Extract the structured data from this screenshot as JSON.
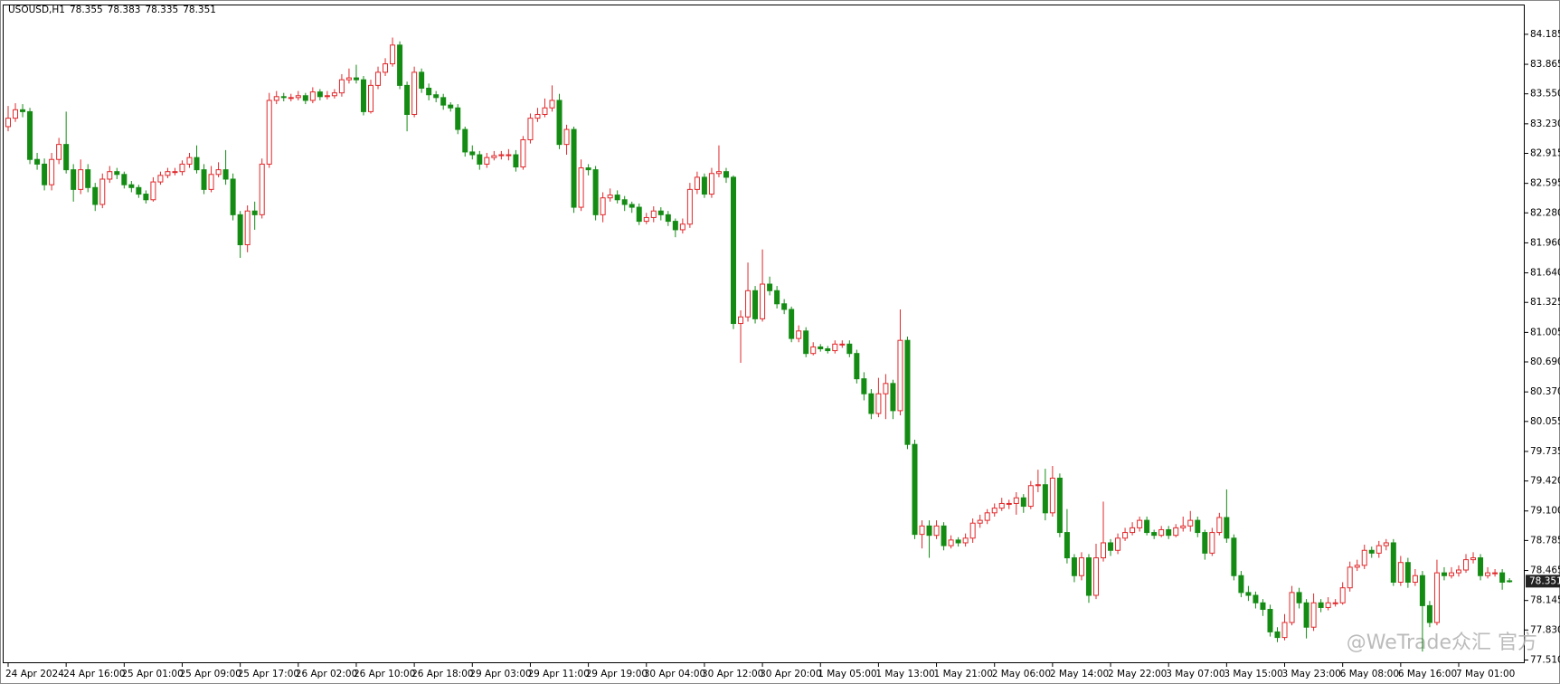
{
  "chart_data": {
    "type": "candlestick",
    "symbol": "USOUSD,H1",
    "watermark": "@WeTrade众汇 官方",
    "up_color": "#e0282b",
    "down_color": "#148c14",
    "grid": false,
    "ylim": [
      77.476,
      84.493
    ],
    "yticks": [
      84.185,
      83.865,
      {
        "value": 83.55,
        "label": "83.550"
      },
      {
        "value": 83.23,
        "label": "83.230"
      },
      82.915,
      82.595,
      {
        "value": 82.28,
        "label": "82.280"
      },
      {
        "value": 81.96,
        "label": "81.960"
      },
      {
        "value": 81.64,
        "label": "81.640"
      },
      81.325,
      81.005,
      {
        "value": 80.69,
        "label": "80.690"
      },
      {
        "value": 80.37,
        "label": "80.370"
      },
      80.055,
      79.735,
      {
        "value": 79.42,
        "label": "79.420"
      },
      {
        "value": 79.1,
        "label": "79.100"
      },
      78.785,
      78.465,
      78.145,
      {
        "value": 77.83,
        "label": "77.830"
      },
      {
        "value": 77.51,
        "label": "77.510"
      }
    ],
    "categories": [
      "24 Apr 2024",
      null,
      null,
      null,
      null,
      null,
      null,
      null,
      "24 Apr 16:00",
      null,
      null,
      null,
      null,
      null,
      null,
      null,
      "25 Apr 01:00",
      null,
      null,
      null,
      null,
      null,
      null,
      null,
      "25 Apr 09:00",
      null,
      null,
      null,
      null,
      null,
      null,
      null,
      "25 Apr 17:00",
      null,
      null,
      null,
      null,
      null,
      null,
      null,
      "26 Apr 02:00",
      null,
      null,
      null,
      null,
      null,
      null,
      null,
      "26 Apr 10:00",
      null,
      null,
      null,
      null,
      null,
      null,
      null,
      "26 Apr 18:00",
      null,
      null,
      null,
      null,
      null,
      null,
      null,
      "29 Apr 03:00",
      null,
      null,
      null,
      null,
      null,
      null,
      null,
      "29 Apr 11:00",
      null,
      null,
      null,
      null,
      null,
      null,
      null,
      "29 Apr 19:00",
      null,
      null,
      null,
      null,
      null,
      null,
      null,
      "30 Apr 04:00",
      null,
      null,
      null,
      null,
      null,
      null,
      null,
      "30 Apr 12:00",
      null,
      null,
      null,
      null,
      null,
      null,
      null,
      "30 Apr 20:00",
      null,
      null,
      null,
      null,
      null,
      null,
      null,
      "1 May 05:00",
      null,
      null,
      null,
      null,
      null,
      null,
      null,
      "1 May 13:00",
      null,
      null,
      null,
      null,
      null,
      null,
      null,
      "1 May 21:00",
      null,
      null,
      null,
      null,
      null,
      null,
      null,
      "2 May 06:00",
      null,
      null,
      null,
      null,
      null,
      null,
      null,
      "2 May 14:00",
      null,
      null,
      null,
      null,
      null,
      null,
      null,
      "2 May 22:00",
      null,
      null,
      null,
      null,
      null,
      null,
      null,
      "3 May 07:00",
      null,
      null,
      null,
      null,
      null,
      null,
      null,
      "3 May 15:00",
      null,
      null,
      null,
      null,
      null,
      null,
      null,
      "3 May 23:00",
      null,
      null,
      null,
      null,
      null,
      null,
      null,
      "6 May 08:00",
      null,
      null,
      null,
      null,
      null,
      null,
      null,
      "6 May 16:00",
      null,
      null,
      null,
      null,
      null,
      null,
      null,
      "7 May 01:00",
      null,
      null,
      null,
      null,
      null,
      null,
      null
    ],
    "open": [
      83.2,
      83.29,
      83.38,
      83.36,
      82.85,
      82.8,
      82.58,
      82.85,
      83.01,
      82.74,
      82.53,
      82.74,
      82.55,
      82.37,
      82.64,
      82.72,
      82.69,
      82.58,
      82.55,
      82.48,
      82.42,
      82.61,
      82.68,
      82.72,
      82.72,
      82.8,
      82.87,
      82.74,
      82.53,
      82.69,
      82.74,
      82.64,
      82.26,
      81.94,
      82.3,
      82.26,
      82.8,
      83.48,
      83.52,
      83.51,
      83.51,
      83.53,
      83.48,
      83.57,
      83.52,
      83.53,
      83.56,
      83.7,
      83.72,
      83.7,
      83.36,
      83.64,
      83.78,
      83.87,
      84.07,
      83.64,
      83.33,
      83.78,
      83.61,
      83.54,
      83.51,
      83.43,
      83.4,
      83.17,
      82.93,
      82.9,
      82.8,
      82.87,
      82.89,
      82.9,
      82.9,
      82.77,
      83.06,
      83.29,
      83.33,
      83.4,
      83.48,
      83.01,
      83.17,
      82.34,
      82.76,
      82.74,
      82.26,
      82.44,
      82.47,
      82.42,
      82.37,
      82.34,
      82.19,
      82.23,
      82.3,
      82.26,
      82.19,
      82.1,
      82.16,
      82.53,
      82.66,
      82.48,
      82.7,
      82.72,
      82.66,
      81.1,
      81.17,
      81.45,
      81.15,
      81.52,
      81.45,
      81.31,
      81.25,
      80.94,
      81.02,
      80.78,
      80.85,
      80.83,
      80.81,
      80.88,
      80.88,
      80.78,
      80.51,
      80.35,
      80.14,
      80.35,
      80.46,
      80.17,
      80.92,
      79.81,
      78.85,
      78.94,
      78.84,
      78.94,
      78.73,
      78.79,
      78.76,
      78.81,
      78.97,
      79.0,
      79.08,
      79.13,
      79.18,
      79.18,
      79.24,
      79.15,
      79.37,
      79.38,
      79.08,
      79.45,
      78.87,
      78.6,
      78.41,
      78.6,
      78.2,
      78.6,
      78.76,
      78.68,
      78.81,
      78.87,
      78.92,
      79.0,
      78.87,
      78.84,
      78.9,
      78.84,
      78.92,
      78.94,
      79.0,
      78.87,
      78.65,
      78.87,
      79.03,
      78.81,
      78.41,
      78.23,
      78.2,
      78.12,
      78.05,
      77.81,
      77.75,
      77.91,
      78.23,
      78.12,
      77.86,
      78.12,
      78.07,
      78.12,
      78.12,
      78.28,
      78.5,
      78.52,
      78.68,
      78.65,
      78.73,
      78.76,
      78.34,
      78.55,
      78.34,
      78.41,
      78.09,
      77.91,
      78.44,
      78.41,
      78.44,
      78.47,
      78.58,
      78.6,
      78.41,
      78.44,
      78.44,
      78.355
    ],
    "high": [
      83.42,
      83.45,
      83.44,
      83.4,
      82.92,
      82.86,
      82.92,
      83.08,
      83.36,
      82.8,
      82.85,
      82.8,
      82.6,
      82.7,
      82.78,
      82.76,
      82.72,
      82.62,
      82.58,
      82.52,
      82.66,
      82.72,
      82.76,
      82.76,
      82.84,
      82.92,
      83.0,
      82.8,
      82.78,
      82.82,
      82.95,
      82.7,
      82.3,
      82.36,
      82.4,
      82.86,
      83.56,
      83.58,
      83.56,
      83.55,
      83.58,
      83.56,
      83.62,
      83.6,
      83.58,
      83.6,
      83.76,
      83.82,
      83.86,
      83.74,
      83.7,
      83.84,
      83.93,
      84.15,
      84.11,
      83.68,
      83.84,
      83.82,
      83.66,
      83.58,
      83.55,
      83.46,
      83.44,
      83.2,
      83.0,
      82.94,
      82.92,
      82.94,
      82.94,
      82.96,
      82.95,
      83.1,
      83.34,
      83.4,
      83.5,
      83.64,
      83.55,
      83.22,
      83.2,
      82.85,
      82.8,
      82.78,
      82.5,
      82.54,
      82.52,
      82.46,
      82.4,
      82.38,
      82.28,
      82.35,
      82.34,
      82.3,
      82.22,
      82.22,
      82.6,
      82.72,
      82.7,
      82.76,
      83.0,
      82.76,
      82.68,
      81.24,
      81.75,
      81.5,
      81.89,
      81.6,
      81.5,
      81.36,
      81.28,
      81.08,
      81.06,
      80.9,
      80.88,
      80.86,
      80.92,
      80.92,
      80.92,
      80.82,
      80.58,
      80.4,
      80.52,
      80.56,
      80.5,
      81.25,
      80.96,
      79.86,
      79.0,
      79.0,
      79.0,
      78.98,
      78.84,
      78.82,
      78.86,
      79.02,
      79.06,
      79.12,
      79.18,
      79.24,
      79.22,
      79.3,
      79.28,
      79.42,
      79.54,
      79.55,
      79.58,
      79.5,
      79.12,
      78.64,
      78.66,
      78.64,
      78.75,
      79.2,
      78.8,
      78.86,
      78.92,
      78.98,
      79.04,
      79.04,
      78.9,
      78.94,
      78.94,
      78.96,
      79.04,
      79.1,
      79.04,
      78.9,
      78.92,
      79.08,
      79.33,
      78.85,
      78.46,
      78.3,
      78.24,
      78.16,
      78.1,
      77.86,
      78.0,
      78.3,
      78.28,
      78.16,
      78.22,
      78.16,
      78.18,
      78.16,
      78.34,
      78.56,
      78.58,
      78.74,
      78.72,
      78.78,
      78.8,
      78.8,
      78.62,
      78.6,
      78.48,
      78.46,
      78.14,
      78.58,
      78.5,
      78.5,
      78.52,
      78.64,
      78.66,
      78.64,
      78.5,
      78.48,
      78.48,
      78.383
    ],
    "low": [
      83.15,
      83.25,
      83.3,
      82.8,
      82.74,
      82.52,
      82.52,
      82.8,
      82.7,
      82.4,
      82.48,
      82.5,
      82.3,
      82.33,
      82.6,
      82.64,
      82.54,
      82.5,
      82.44,
      82.38,
      82.4,
      82.58,
      82.65,
      82.68,
      82.68,
      82.76,
      82.7,
      82.48,
      82.5,
      82.66,
      82.58,
      82.2,
      81.8,
      81.86,
      82.1,
      82.22,
      82.76,
      83.44,
      83.47,
      83.47,
      83.48,
      83.44,
      83.45,
      83.48,
      83.49,
      83.5,
      83.52,
      83.66,
      83.66,
      83.32,
      83.34,
      83.6,
      83.74,
      83.84,
      83.6,
      83.15,
      83.3,
      83.56,
      83.48,
      83.46,
      83.38,
      83.36,
      83.12,
      82.88,
      82.85,
      82.74,
      82.76,
      82.84,
      82.85,
      82.84,
      82.72,
      82.74,
      83.02,
      83.25,
      83.3,
      83.36,
      82.96,
      82.9,
      82.28,
      82.3,
      82.68,
      82.2,
      82.18,
      82.4,
      82.38,
      82.3,
      82.28,
      82.15,
      82.16,
      82.18,
      82.2,
      82.14,
      82.02,
      82.06,
      82.12,
      82.48,
      82.44,
      82.44,
      82.66,
      82.6,
      81.04,
      80.68,
      81.12,
      81.1,
      81.12,
      81.4,
      81.26,
      81.2,
      80.9,
      80.9,
      80.74,
      80.76,
      80.8,
      80.78,
      80.78,
      80.84,
      80.74,
      80.46,
      80.28,
      80.08,
      80.1,
      80.08,
      80.08,
      80.12,
      79.76,
      78.8,
      78.7,
      78.6,
      78.8,
      78.68,
      78.7,
      78.72,
      78.72,
      78.76,
      78.92,
      78.96,
      79.04,
      79.1,
      79.12,
      79.06,
      79.08,
      79.12,
      79.3,
      79.0,
      79.04,
      78.82,
      78.54,
      78.34,
      78.36,
      78.12,
      78.16,
      78.56,
      78.62,
      78.64,
      78.78,
      78.84,
      78.88,
      78.84,
      78.8,
      78.82,
      78.8,
      78.82,
      78.88,
      78.88,
      78.82,
      78.58,
      78.62,
      78.84,
      78.76,
      78.36,
      78.18,
      78.14,
      78.06,
      77.98,
      77.76,
      77.7,
      77.72,
      77.88,
      78.06,
      77.74,
      77.82,
      78.02,
      78.04,
      78.08,
      78.1,
      78.24,
      78.46,
      78.48,
      78.6,
      78.6,
      78.68,
      78.3,
      78.3,
      78.28,
      78.3,
      77.6,
      77.86,
      77.88,
      78.36,
      78.38,
      78.4,
      78.44,
      78.54,
      78.36,
      78.38,
      78.4,
      78.26,
      78.335
    ],
    "close": [
      83.29,
      83.38,
      83.36,
      82.85,
      82.8,
      82.58,
      82.85,
      83.01,
      82.74,
      82.53,
      82.74,
      82.55,
      82.37,
      82.64,
      82.72,
      82.69,
      82.58,
      82.55,
      82.48,
      82.42,
      82.61,
      82.68,
      82.72,
      82.72,
      82.8,
      82.87,
      82.74,
      82.53,
      82.69,
      82.74,
      82.64,
      82.26,
      81.94,
      82.3,
      82.26,
      82.8,
      83.48,
      83.52,
      83.51,
      83.51,
      83.53,
      83.48,
      83.57,
      83.52,
      83.53,
      83.56,
      83.7,
      83.72,
      83.7,
      83.36,
      83.64,
      83.78,
      83.87,
      84.07,
      83.64,
      83.33,
      83.78,
      83.61,
      83.54,
      83.51,
      83.43,
      83.4,
      83.17,
      82.93,
      82.9,
      82.8,
      82.87,
      82.89,
      82.9,
      82.9,
      82.77,
      83.06,
      83.29,
      83.33,
      83.4,
      83.48,
      83.01,
      83.17,
      82.34,
      82.76,
      82.74,
      82.26,
      82.44,
      82.47,
      82.42,
      82.37,
      82.34,
      82.19,
      82.23,
      82.3,
      82.26,
      82.19,
      82.1,
      82.16,
      82.53,
      82.66,
      82.48,
      82.7,
      82.72,
      82.66,
      81.1,
      81.17,
      81.45,
      81.15,
      81.52,
      81.45,
      81.31,
      81.25,
      80.94,
      81.02,
      80.78,
      80.85,
      80.83,
      80.81,
      80.88,
      80.88,
      80.78,
      80.51,
      80.35,
      80.14,
      80.35,
      80.46,
      80.17,
      80.92,
      79.81,
      78.85,
      78.94,
      78.84,
      78.94,
      78.73,
      78.79,
      78.76,
      78.81,
      78.97,
      79.0,
      79.08,
      79.13,
      79.18,
      79.18,
      79.24,
      79.15,
      79.37,
      79.38,
      79.08,
      79.45,
      78.87,
      78.6,
      78.41,
      78.6,
      78.2,
      78.6,
      78.76,
      78.68,
      78.81,
      78.87,
      78.92,
      79.0,
      78.87,
      78.84,
      78.9,
      78.84,
      78.92,
      78.94,
      79.0,
      78.87,
      78.65,
      78.87,
      79.03,
      78.81,
      78.41,
      78.23,
      78.2,
      78.12,
      78.05,
      77.81,
      77.75,
      77.91,
      78.23,
      78.12,
      77.86,
      78.12,
      78.07,
      78.12,
      78.12,
      78.28,
      78.5,
      78.52,
      78.68,
      78.65,
      78.73,
      78.76,
      78.34,
      78.55,
      78.34,
      78.41,
      78.09,
      77.91,
      78.44,
      78.41,
      78.44,
      78.47,
      78.58,
      78.6,
      78.41,
      78.44,
      78.44,
      78.34,
      78.351
    ]
  }
}
